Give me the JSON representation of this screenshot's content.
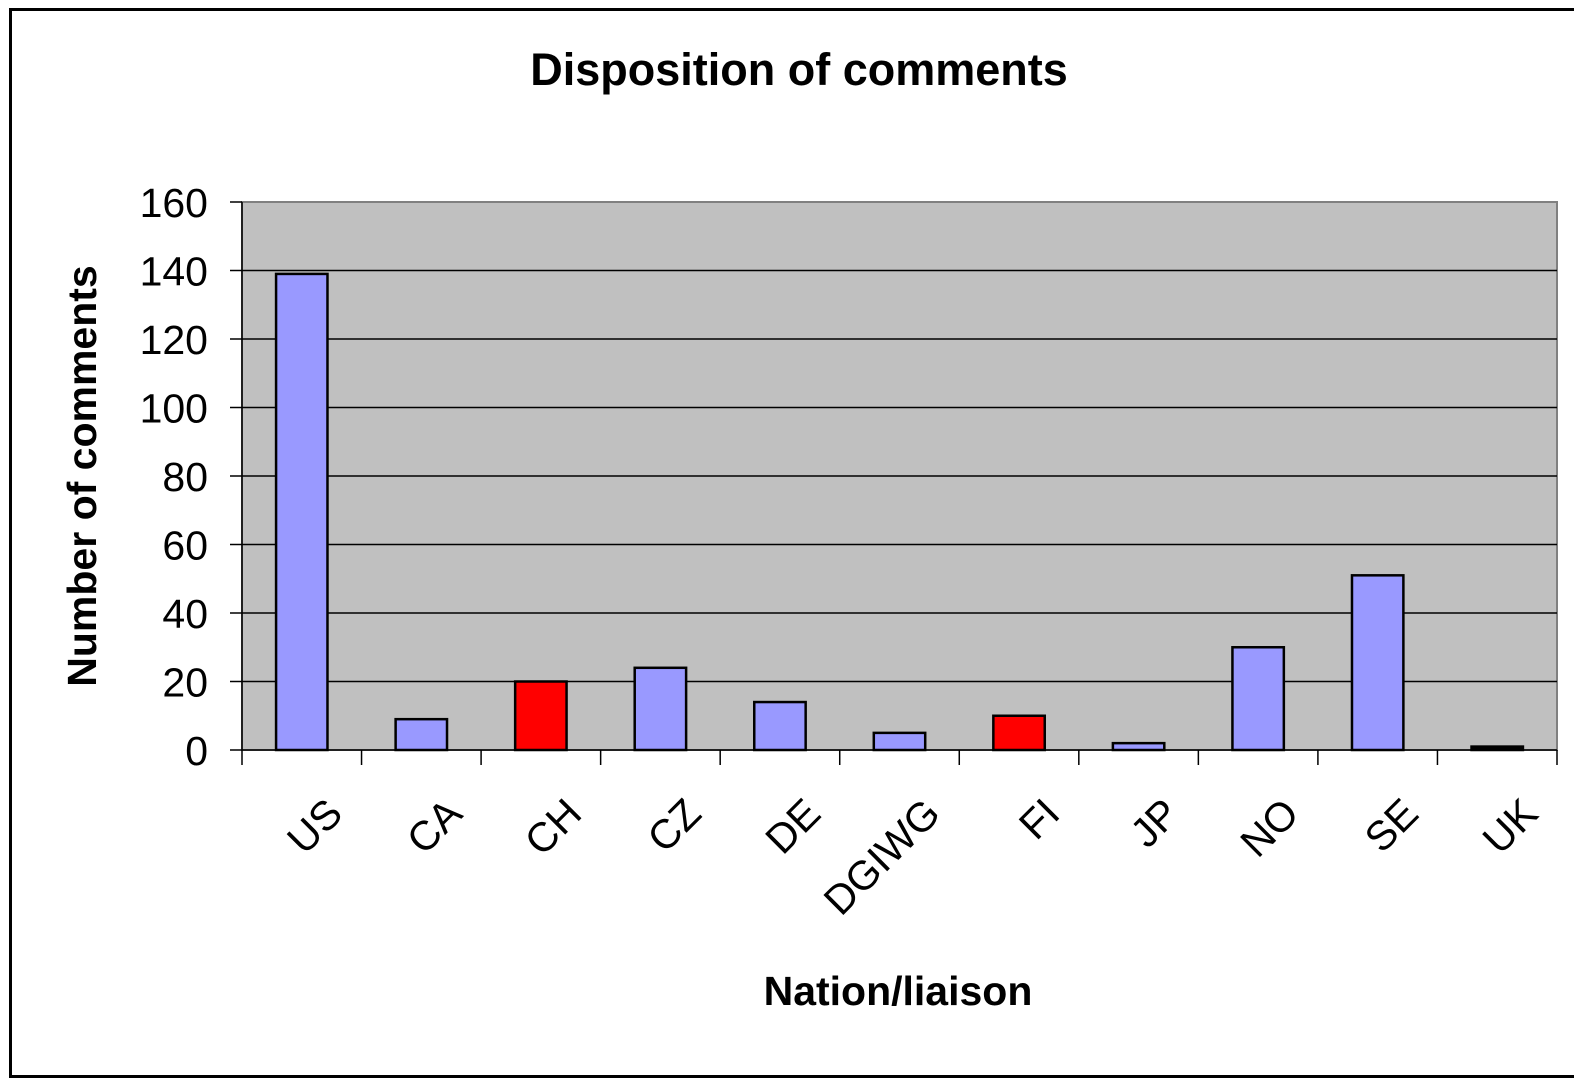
{
  "chart_data": {
    "type": "bar",
    "title": "Disposition of comments",
    "xlabel": "Nation/liaison",
    "ylabel": "Number of comments",
    "categories": [
      "US",
      "CA",
      "CH",
      "CZ",
      "DE",
      "DGIWG",
      "FI",
      "JP",
      "NO",
      "SE",
      "UK"
    ],
    "series": [
      {
        "values": [
          139,
          9,
          20,
          24,
          14,
          5,
          10,
          2,
          30,
          51,
          1
        ]
      }
    ],
    "bar_colors": [
      "#9999ff",
      "#9999ff",
      "#ff0000",
      "#9999ff",
      "#9999ff",
      "#9999ff",
      "#ff0000",
      "#9999ff",
      "#9999ff",
      "#9999ff",
      "#000000"
    ],
    "ylim": [
      0,
      160
    ],
    "yticks": [
      0,
      20,
      40,
      60,
      80,
      100,
      120,
      140,
      160
    ],
    "grid": true,
    "legend": "none",
    "colors": {
      "plot_background": "#c0c0c0",
      "gridline": "#000000",
      "bar_outline": "#000000"
    }
  }
}
